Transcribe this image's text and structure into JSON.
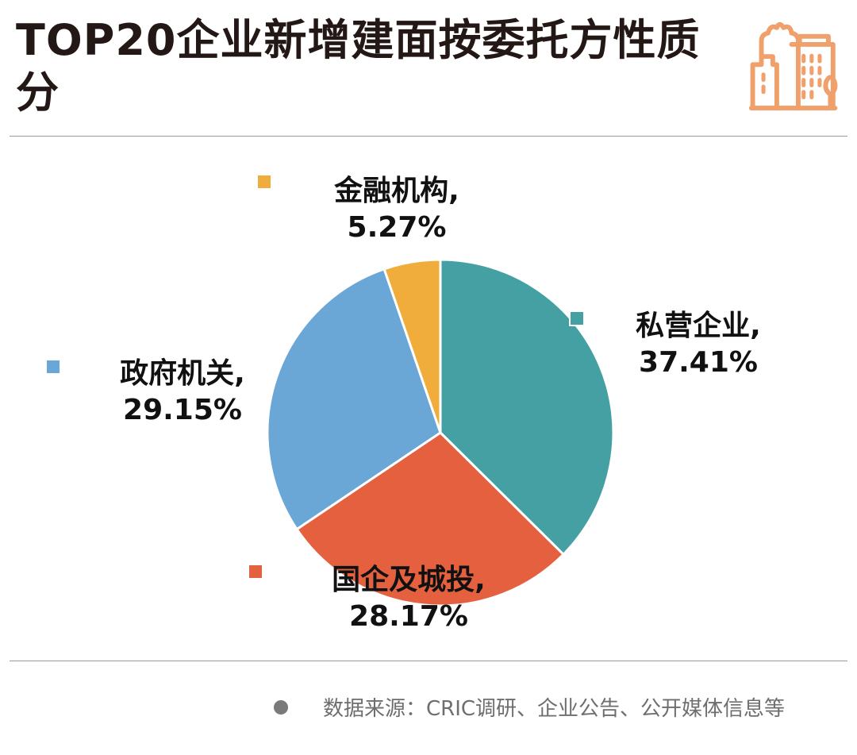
{
  "header": {
    "title": "TOP20企业新增建面按委托方性质分",
    "icon": "city-buildings-icon",
    "icon_color": "#f0a06a"
  },
  "chart_data": {
    "type": "pie",
    "title": "TOP20企业新增建面按委托方性质分",
    "unit": "%",
    "start": "top",
    "direction": "clockwise",
    "slices": [
      {
        "name": "私营企业",
        "value": 37.41,
        "color": "#45a0a3"
      },
      {
        "name": "国企及城投",
        "value": 28.17,
        "color": "#e4603f"
      },
      {
        "name": "政府机关",
        "value": 29.15,
        "color": "#6aa6d6"
      },
      {
        "name": "金融机构",
        "value": 5.27,
        "color": "#f0ad3c"
      }
    ]
  },
  "footer": {
    "source": "数据来源：CRIC调研、企业公告、公开媒体信息等"
  }
}
